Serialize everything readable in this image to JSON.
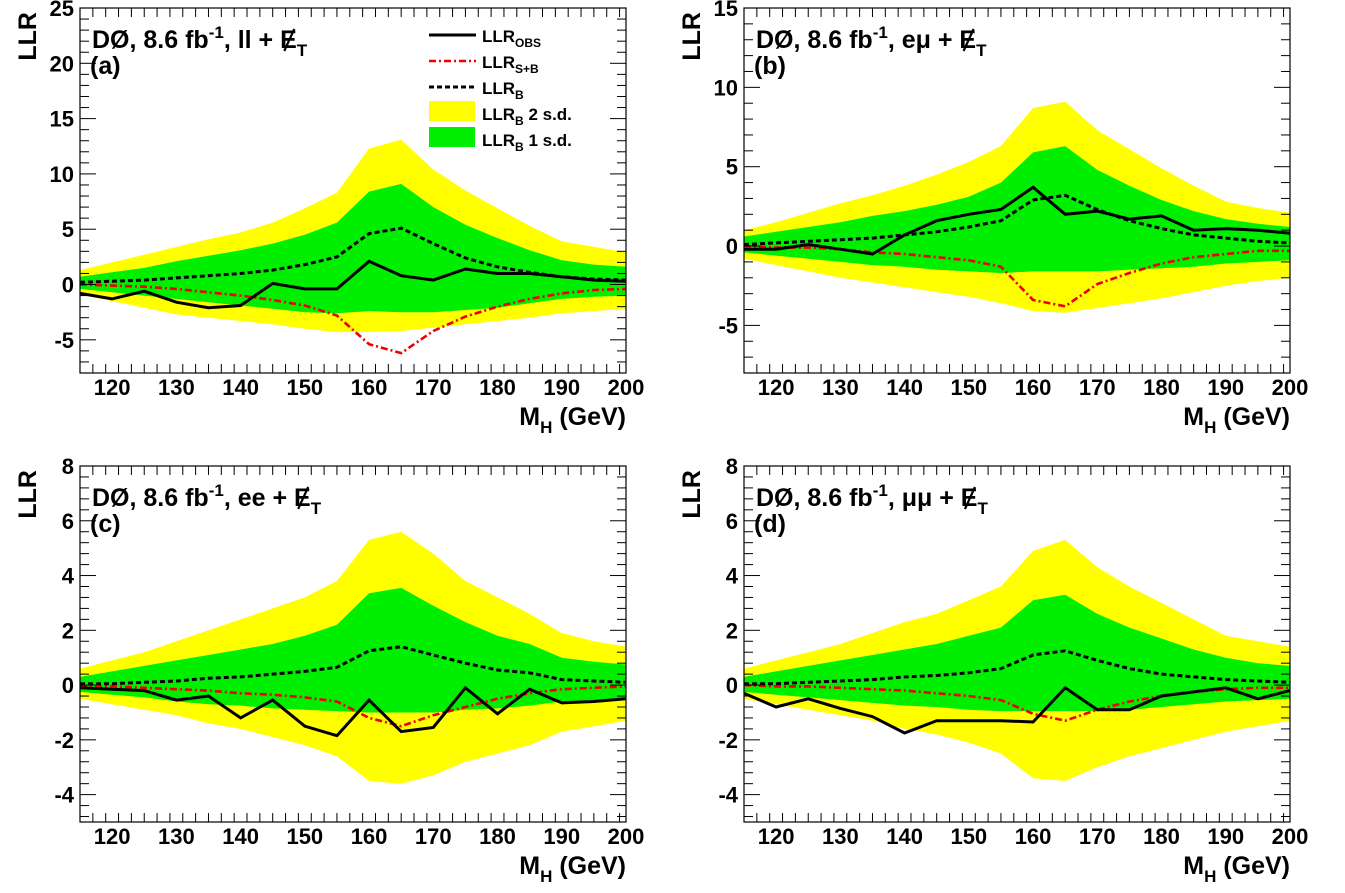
{
  "chart_data": [
    {
      "type": "line",
      "panel_label": "(a)",
      "header": {
        "prefix": "DØ, 8.6 fb",
        "sup": "-1",
        "suffix": ", ll + ",
        "met": "E",
        "met_sub": "T"
      },
      "ylabel": "LLR",
      "xlabel": {
        "main": "M",
        "sub": "H",
        "rest": " (GeV)"
      },
      "xlim": [
        115,
        200
      ],
      "ylim": [
        -8,
        25
      ],
      "xticks": [
        120,
        130,
        140,
        150,
        160,
        170,
        180,
        190,
        200
      ],
      "yticks": [
        -5,
        0,
        5,
        10,
        15,
        20,
        25
      ],
      "x": [
        115,
        120,
        125,
        130,
        135,
        140,
        145,
        150,
        155,
        160,
        165,
        170,
        175,
        180,
        185,
        190,
        195,
        200
      ],
      "series": [
        {
          "name": "LLR_OBS",
          "values": [
            -0.8,
            -1.3,
            -0.6,
            -1.6,
            -2.1,
            -1.9,
            0.1,
            -0.4,
            -0.4,
            2.1,
            0.8,
            0.4,
            1.4,
            1.0,
            1.0,
            0.7,
            0.4,
            0.3
          ]
        },
        {
          "name": "LLR_S+B",
          "values": [
            0.0,
            -0.1,
            -0.2,
            -0.4,
            -0.7,
            -1.0,
            -1.4,
            -1.9,
            -2.8,
            -5.4,
            -6.2,
            -4.2,
            -2.9,
            -2.0,
            -1.3,
            -0.8,
            -0.5,
            -0.4
          ]
        },
        {
          "name": "LLR_B",
          "values": [
            0.2,
            0.3,
            0.4,
            0.6,
            0.8,
            1.0,
            1.3,
            1.8,
            2.5,
            4.6,
            5.1,
            3.7,
            2.4,
            1.6,
            1.1,
            0.7,
            0.5,
            0.4
          ]
        },
        {
          "name": "LLR_B 1 s.d.",
          "lower": [
            -0.4,
            -0.7,
            -1.0,
            -1.3,
            -1.6,
            -1.9,
            -2.2,
            -2.5,
            -2.6,
            -2.4,
            -2.5,
            -2.5,
            -2.3,
            -2.1,
            -1.7,
            -1.3,
            -1.1,
            -1.0
          ],
          "upper": [
            0.7,
            1.1,
            1.5,
            2.1,
            2.6,
            3.1,
            3.7,
            4.5,
            5.6,
            8.4,
            9.1,
            7.0,
            5.4,
            4.2,
            3.1,
            2.2,
            1.8,
            1.6
          ]
        },
        {
          "name": "LLR_B 2 s.d.",
          "lower": [
            -0.9,
            -1.5,
            -2.1,
            -2.7,
            -3.0,
            -3.3,
            -3.6,
            -4.0,
            -4.3,
            -4.3,
            -4.2,
            -3.9,
            -3.6,
            -3.3,
            -3.0,
            -2.6,
            -2.4,
            -2.2
          ],
          "upper": [
            1.3,
            2.0,
            2.7,
            3.4,
            4.1,
            4.7,
            5.6,
            6.9,
            8.3,
            12.3,
            13.1,
            10.4,
            8.5,
            6.9,
            5.3,
            3.9,
            3.4,
            2.9
          ]
        }
      ],
      "legend": {
        "placement": "top-right",
        "entries": [
          {
            "main": "LLR",
            "sub": "OBS",
            "rest": ""
          },
          {
            "main": "LLR",
            "sub": "S+B",
            "rest": ""
          },
          {
            "main": "LLR",
            "sub": "B",
            "rest": ""
          },
          {
            "main": "LLR",
            "sub": "B",
            "rest": " 2 s.d."
          },
          {
            "main": "LLR",
            "sub": "B",
            "rest": " 1 s.d."
          }
        ]
      }
    },
    {
      "type": "line",
      "panel_label": "(b)",
      "header": {
        "prefix": "DØ, 8.6 fb",
        "sup": "-1",
        "suffix": ", eμ + ",
        "met": "E",
        "met_sub": "T"
      },
      "ylabel": "LLR",
      "xlabel": {
        "main": "M",
        "sub": "H",
        "rest": " (GeV)"
      },
      "xlim": [
        115,
        200
      ],
      "ylim": [
        -8,
        15
      ],
      "xticks": [
        120,
        130,
        140,
        150,
        160,
        170,
        180,
        190,
        200
      ],
      "yticks": [
        -5,
        0,
        5,
        10,
        15
      ],
      "x": [
        115,
        120,
        125,
        130,
        135,
        140,
        145,
        150,
        155,
        160,
        165,
        170,
        175,
        180,
        185,
        190,
        195,
        200
      ],
      "series": [
        {
          "name": "LLR_OBS",
          "values": [
            -0.2,
            -0.2,
            0.1,
            -0.2,
            -0.5,
            0.7,
            1.6,
            2.0,
            2.3,
            3.7,
            2.0,
            2.2,
            1.7,
            1.9,
            1.0,
            1.1,
            1.0,
            0.8
          ]
        },
        {
          "name": "LLR_S+B",
          "values": [
            0.0,
            -0.1,
            -0.1,
            -0.2,
            -0.4,
            -0.5,
            -0.7,
            -0.9,
            -1.3,
            -3.4,
            -3.8,
            -2.4,
            -1.7,
            -1.1,
            -0.7,
            -0.5,
            -0.3,
            -0.3
          ]
        },
        {
          "name": "LLR_B",
          "values": [
            0.1,
            0.2,
            0.3,
            0.4,
            0.5,
            0.7,
            0.9,
            1.2,
            1.6,
            2.9,
            3.2,
            2.3,
            1.6,
            1.1,
            0.7,
            0.5,
            0.3,
            0.2
          ]
        },
        {
          "name": "LLR_B 1 s.d.",
          "lower": [
            -0.4,
            -0.6,
            -0.8,
            -1.0,
            -1.2,
            -1.3,
            -1.5,
            -1.6,
            -1.7,
            -1.6,
            -1.6,
            -1.6,
            -1.5,
            -1.4,
            -1.3,
            -1.1,
            -1.0,
            -0.9
          ],
          "upper": [
            0.6,
            0.9,
            1.2,
            1.5,
            1.9,
            2.2,
            2.6,
            3.1,
            4.0,
            5.9,
            6.3,
            4.8,
            3.8,
            2.9,
            2.2,
            1.7,
            1.4,
            1.2
          ]
        },
        {
          "name": "LLR_B 2 s.d.",
          "lower": [
            -0.8,
            -1.2,
            -1.6,
            -2.0,
            -2.3,
            -2.6,
            -2.9,
            -3.2,
            -3.6,
            -4.1,
            -4.2,
            -3.9,
            -3.6,
            -3.3,
            -2.9,
            -2.5,
            -2.2,
            -2.0
          ],
          "upper": [
            1.0,
            1.5,
            2.1,
            2.7,
            3.2,
            3.8,
            4.5,
            5.3,
            6.3,
            8.7,
            9.1,
            7.3,
            6.1,
            4.9,
            3.8,
            2.8,
            2.4,
            2.1
          ]
        }
      ]
    },
    {
      "type": "line",
      "panel_label": "(c)",
      "header": {
        "prefix": "DØ, 8.6 fb",
        "sup": "-1",
        "suffix": ", ee + ",
        "met": "E",
        "met_sub": "T"
      },
      "ylabel": "LLR",
      "xlabel": {
        "main": "M",
        "sub": "H",
        "rest": " (GeV)"
      },
      "xlim": [
        115,
        200
      ],
      "ylim": [
        -5,
        8
      ],
      "xticks": [
        120,
        130,
        140,
        150,
        160,
        170,
        180,
        190,
        200
      ],
      "yticks": [
        -4,
        -2,
        0,
        2,
        4,
        6,
        8
      ],
      "x": [
        115,
        120,
        125,
        130,
        135,
        140,
        145,
        150,
        155,
        160,
        165,
        170,
        175,
        180,
        185,
        190,
        195,
        200
      ],
      "series": [
        {
          "name": "LLR_OBS",
          "values": [
            -0.1,
            -0.15,
            -0.2,
            -0.55,
            -0.4,
            -1.2,
            -0.55,
            -1.5,
            -1.85,
            -0.55,
            -1.7,
            -1.55,
            -0.1,
            -1.05,
            -0.15,
            -0.65,
            -0.6,
            -0.5
          ]
        },
        {
          "name": "LLR_S+B",
          "values": [
            -0.05,
            -0.05,
            -0.1,
            -0.15,
            -0.2,
            -0.3,
            -0.35,
            -0.45,
            -0.6,
            -1.2,
            -1.5,
            -1.1,
            -0.8,
            -0.5,
            -0.3,
            -0.15,
            -0.1,
            -0.05
          ]
        },
        {
          "name": "LLR_B",
          "values": [
            0.05,
            0.05,
            0.1,
            0.15,
            0.25,
            0.3,
            0.4,
            0.5,
            0.65,
            1.25,
            1.4,
            1.1,
            0.8,
            0.55,
            0.45,
            0.2,
            0.15,
            0.1
          ]
        },
        {
          "name": "LLR_B 1 s.d.",
          "lower": [
            -0.25,
            -0.35,
            -0.45,
            -0.6,
            -0.7,
            -0.75,
            -0.85,
            -0.9,
            -0.95,
            -1.0,
            -1.0,
            -1.0,
            -0.9,
            -0.85,
            -0.75,
            -0.6,
            -0.55,
            -0.5
          ],
          "upper": [
            0.3,
            0.5,
            0.7,
            0.9,
            1.1,
            1.3,
            1.5,
            1.8,
            2.2,
            3.35,
            3.55,
            2.9,
            2.3,
            1.8,
            1.5,
            1.0,
            0.85,
            0.75
          ]
        },
        {
          "name": "LLR_B 2 s.d.",
          "lower": [
            -0.5,
            -0.7,
            -0.9,
            -1.1,
            -1.4,
            -1.6,
            -1.9,
            -2.2,
            -2.6,
            -3.5,
            -3.6,
            -3.3,
            -2.8,
            -2.5,
            -2.2,
            -1.7,
            -1.5,
            -1.3
          ],
          "upper": [
            0.6,
            0.9,
            1.2,
            1.6,
            2.0,
            2.4,
            2.8,
            3.2,
            3.8,
            5.3,
            5.6,
            4.8,
            3.8,
            3.2,
            2.6,
            1.9,
            1.6,
            1.4
          ]
        }
      ]
    },
    {
      "type": "line",
      "panel_label": "(d)",
      "header": {
        "prefix": "DØ, 8.6 fb",
        "sup": "-1",
        "suffix": ", μμ + ",
        "met": "E",
        "met_sub": "T"
      },
      "ylabel": "LLR",
      "xlabel": {
        "main": "M",
        "sub": "H",
        "rest": " (GeV)"
      },
      "xlim": [
        115,
        200
      ],
      "ylim": [
        -5,
        8
      ],
      "xticks": [
        120,
        130,
        140,
        150,
        160,
        170,
        180,
        190,
        200
      ],
      "yticks": [
        -4,
        -2,
        0,
        2,
        4,
        6,
        8
      ],
      "x": [
        115,
        120,
        125,
        130,
        135,
        140,
        145,
        150,
        155,
        160,
        165,
        170,
        175,
        180,
        185,
        190,
        195,
        200
      ],
      "series": [
        {
          "name": "LLR_OBS",
          "values": [
            -0.3,
            -0.8,
            -0.5,
            -0.85,
            -1.15,
            -1.75,
            -1.3,
            -1.3,
            -1.3,
            -1.35,
            -0.1,
            -0.9,
            -0.9,
            -0.4,
            -0.25,
            -0.1,
            -0.5,
            -0.2
          ]
        },
        {
          "name": "LLR_S+B",
          "values": [
            0.0,
            -0.05,
            -0.05,
            -0.1,
            -0.15,
            -0.2,
            -0.3,
            -0.4,
            -0.55,
            -1.05,
            -1.3,
            -0.9,
            -0.6,
            -0.4,
            -0.25,
            -0.15,
            -0.1,
            -0.1
          ]
        },
        {
          "name": "LLR_B",
          "values": [
            0.05,
            0.05,
            0.1,
            0.15,
            0.2,
            0.3,
            0.35,
            0.45,
            0.6,
            1.1,
            1.25,
            0.9,
            0.6,
            0.4,
            0.3,
            0.2,
            0.15,
            0.1
          ]
        },
        {
          "name": "LLR_B 1 s.d.",
          "lower": [
            -0.25,
            -0.35,
            -0.45,
            -0.55,
            -0.65,
            -0.75,
            -0.8,
            -0.9,
            -0.95,
            -0.95,
            -0.95,
            -0.95,
            -0.9,
            -0.8,
            -0.7,
            -0.6,
            -0.55,
            -0.5
          ],
          "upper": [
            0.3,
            0.5,
            0.7,
            0.9,
            1.1,
            1.3,
            1.5,
            1.8,
            2.1,
            3.1,
            3.3,
            2.6,
            2.1,
            1.7,
            1.3,
            1.0,
            0.8,
            0.7
          ]
        },
        {
          "name": "LLR_B 2 s.d.",
          "lower": [
            -0.5,
            -0.7,
            -0.9,
            -1.1,
            -1.3,
            -1.6,
            -1.8,
            -2.1,
            -2.5,
            -3.4,
            -3.5,
            -3.0,
            -2.6,
            -2.3,
            -2.0,
            -1.7,
            -1.5,
            -1.3
          ],
          "upper": [
            0.6,
            0.9,
            1.2,
            1.5,
            1.9,
            2.3,
            2.6,
            3.1,
            3.6,
            4.9,
            5.3,
            4.3,
            3.6,
            3.0,
            2.4,
            1.8,
            1.6,
            1.4
          ]
        }
      ]
    }
  ],
  "colors": {
    "band_2sd": "#ffff00",
    "band_1sd": "#00ee00",
    "obs": "#000000",
    "sb": "#ee0000",
    "b": "#000000"
  }
}
